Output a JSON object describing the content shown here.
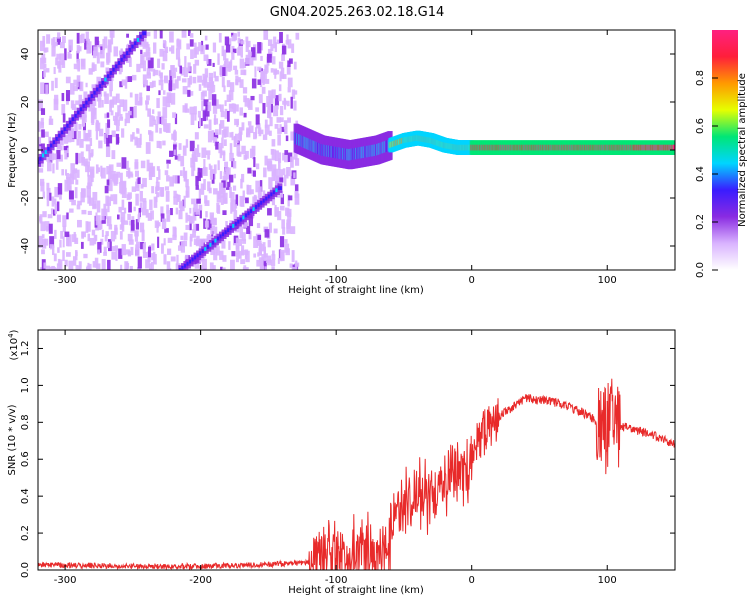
{
  "title": "GN04.2025.263.02.18.G14",
  "chart_data": [
    {
      "type": "heatmap",
      "name": "spectrogram",
      "xlabel": "Height of straight line (km)",
      "ylabel": "Frequency (Hz)",
      "xlim": [
        -320,
        150
      ],
      "ylim": [
        -50,
        50
      ],
      "x_ticks": [
        -300,
        -200,
        -100,
        0,
        100
      ],
      "y_ticks": [
        -40,
        -20,
        0,
        20,
        40
      ],
      "noise_region_x": [
        -320,
        -130
      ],
      "colorbar": {
        "label": "Normalized spectral amplitude",
        "range": [
          0,
          1
        ],
        "ticks": [
          0.0,
          0.2,
          0.4,
          0.6,
          0.8
        ],
        "colormap": [
          "#ffffff",
          "#d9b3ff",
          "#8a2be2",
          "#3a1cff",
          "#00d5ff",
          "#00e676",
          "#e6ff00",
          "#ff9900",
          "#ff1f3a",
          "#ff2080"
        ]
      },
      "features": [
        {
          "name": "aliased-diagonal-upper",
          "x": [
            -320,
            -240
          ],
          "y": [
            -5,
            50
          ]
        },
        {
          "name": "aliased-diagonal-lower",
          "x": [
            -215,
            -140
          ],
          "y": [
            -50,
            -15
          ]
        },
        {
          "name": "main-signal-trace",
          "x": [
            -130,
            -110,
            -90,
            -70,
            -50,
            -40,
            -30,
            -20,
            -10,
            0,
            20,
            40,
            60,
            80,
            100,
            120,
            150
          ],
          "y": [
            5,
            0,
            -2,
            0,
            4,
            5,
            4,
            2,
            1,
            1,
            1,
            1,
            1,
            1,
            1,
            1,
            1
          ]
        }
      ]
    },
    {
      "type": "line",
      "name": "snr",
      "xlabel": "Height of straight line (km)",
      "ylabel": "SNR (10 * v/v)",
      "y_scale_label": "(x10",
      "y_scale_exponent": "4",
      "xlim": [
        -320,
        150
      ],
      "ylim": [
        0,
        1.3
      ],
      "x_ticks": [
        -300,
        -200,
        -100,
        0,
        100
      ],
      "y_ticks": [
        0.0,
        0.2,
        0.4,
        0.6,
        0.8,
        1.0,
        1.2
      ],
      "color": "#e82a2a",
      "x": [
        -320,
        -250,
        -200,
        -150,
        -120,
        -110,
        -100,
        -90,
        -80,
        -70,
        -60,
        -50,
        -40,
        -30,
        -20,
        -10,
        0,
        5,
        10,
        20,
        30,
        40,
        50,
        60,
        70,
        80,
        90,
        95,
        100,
        105,
        110,
        120,
        130,
        140,
        150
      ],
      "y": [
        0.03,
        0.02,
        0.02,
        0.03,
        0.04,
        0.08,
        0.1,
        0.08,
        0.12,
        0.05,
        0.2,
        0.35,
        0.45,
        0.38,
        0.5,
        0.52,
        0.6,
        0.7,
        0.75,
        0.83,
        0.88,
        0.93,
        0.92,
        0.91,
        0.89,
        0.86,
        0.82,
        0.78,
        0.76,
        0.8,
        0.78,
        0.76,
        0.74,
        0.71,
        0.68
      ]
    }
  ]
}
